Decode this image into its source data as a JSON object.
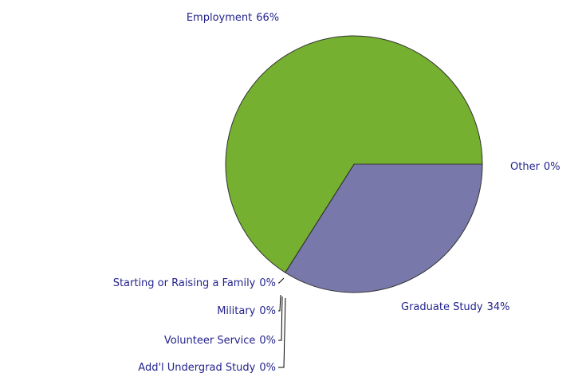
{
  "chart_data": {
    "type": "pie",
    "categories": [
      "Graduate Study",
      "Starting or Raising a Family",
      "Military",
      "Volunteer Service",
      "Add'l Undergrad Study",
      "Employment",
      "Other"
    ],
    "values": [
      34,
      0,
      0,
      0,
      0,
      66,
      0
    ],
    "value_labels": [
      "34%",
      "0%",
      "0%",
      "0%",
      "0%",
      "66%",
      "0%"
    ],
    "colors": [
      "#7878aa",
      "#999999",
      "#999999",
      "#999999",
      "#999999",
      "#76b030",
      "#cccccc"
    ]
  }
}
